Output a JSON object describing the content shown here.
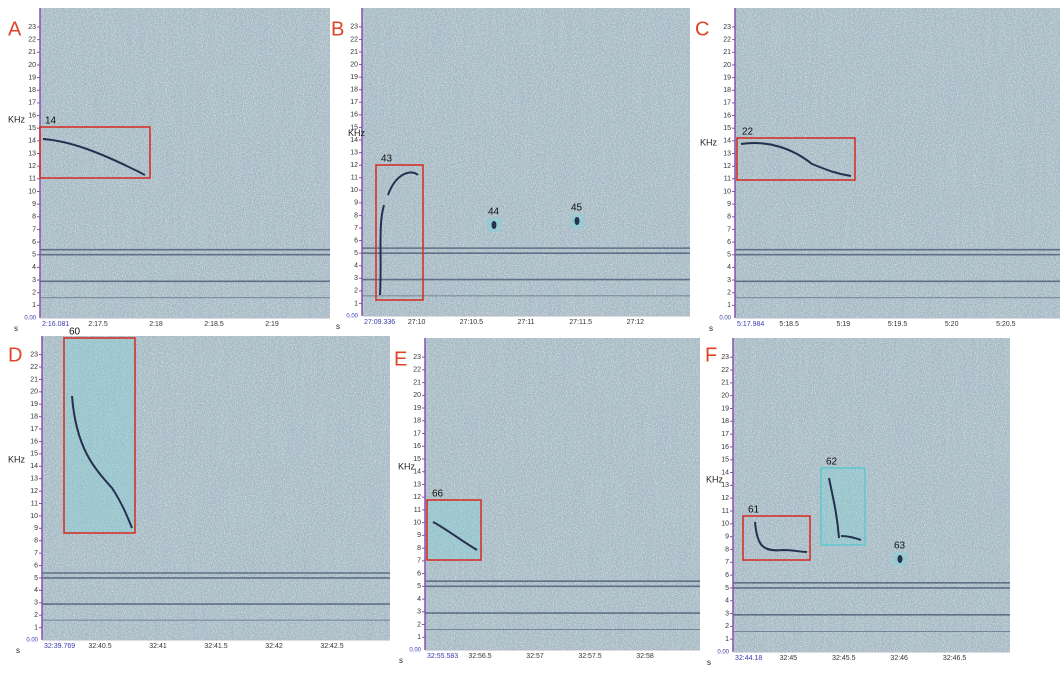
{
  "panels": [
    {
      "letter": "A",
      "y_label": "KHz",
      "y_ticks": [
        "1",
        "2",
        "3",
        "4",
        "5",
        "6",
        "7",
        "8",
        "9",
        "10",
        "11",
        "12",
        "13",
        "14",
        "15",
        "16",
        "17",
        "18",
        "19",
        "20",
        "21",
        "22",
        "23"
      ],
      "origin": "0.00",
      "x_unit": "s",
      "start_time": "2:16.081",
      "x_ticks": [
        "2:17.5",
        "2:18",
        "2:18.5",
        "2:19"
      ],
      "boxes": [
        "14"
      ],
      "spots": []
    },
    {
      "letter": "B",
      "y_label": "KHz",
      "y_ticks": [
        "1",
        "2",
        "3",
        "4",
        "5",
        "6",
        "7",
        "8",
        "9",
        "10",
        "11",
        "12",
        "13",
        "14",
        "15",
        "16",
        "17",
        "18",
        "19",
        "20",
        "21",
        "22",
        "23"
      ],
      "origin": "0.00",
      "x_unit": "s",
      "start_time": "27:09.336",
      "x_ticks": [
        "27:10",
        "27:10.5",
        "27:11",
        "27:11.5",
        "27:12"
      ],
      "boxes": [
        "43"
      ],
      "spots": [
        "44",
        "45"
      ]
    },
    {
      "letter": "C",
      "y_label": "KHz",
      "y_ticks": [
        "1",
        "2",
        "3",
        "4",
        "5",
        "6",
        "7",
        "8",
        "9",
        "10",
        "11",
        "12",
        "13",
        "14",
        "15",
        "16",
        "17",
        "18",
        "19",
        "20",
        "21",
        "22",
        "23"
      ],
      "origin": "0.00",
      "x_unit": "s",
      "start_time": "5:17.984",
      "x_ticks": [
        "5:18.5",
        "5:19",
        "5:19.5",
        "5:20",
        "5:20.5"
      ],
      "boxes": [
        "22"
      ],
      "spots": []
    },
    {
      "letter": "D",
      "y_label": "KHz",
      "y_ticks": [
        "1",
        "2",
        "3",
        "4",
        "5",
        "6",
        "7",
        "8",
        "9",
        "10",
        "11",
        "12",
        "13",
        "14",
        "15",
        "16",
        "17",
        "18",
        "19",
        "20",
        "21",
        "22",
        "23"
      ],
      "origin": "0.00",
      "x_unit": "s",
      "start_time": "32:39.769",
      "x_ticks": [
        "32:40.5",
        "32:41",
        "32:41.5",
        "32:42",
        "32:42.5"
      ],
      "boxes": [
        "60"
      ],
      "spots": []
    },
    {
      "letter": "E",
      "y_label": "KHz",
      "y_ticks": [
        "1",
        "2",
        "3",
        "4",
        "5",
        "6",
        "7",
        "8",
        "9",
        "10",
        "11",
        "12",
        "13",
        "14",
        "15",
        "16",
        "17",
        "18",
        "19",
        "20",
        "21",
        "22",
        "23"
      ],
      "origin": "0.00",
      "x_unit": "s",
      "start_time": "32:55.583",
      "x_ticks": [
        "32:56.5",
        "32:57",
        "32:57.5",
        "32:58"
      ],
      "boxes": [
        "66"
      ],
      "spots": []
    },
    {
      "letter": "F",
      "y_label": "KHz",
      "y_ticks": [
        "1",
        "2",
        "3",
        "4",
        "5",
        "6",
        "7",
        "8",
        "9",
        "10",
        "11",
        "12",
        "13",
        "14",
        "15",
        "16",
        "17",
        "18",
        "19",
        "20",
        "21",
        "22",
        "23"
      ],
      "origin": "0.00",
      "x_unit": "s",
      "start_time": "32:44.18",
      "x_ticks": [
        "32:45",
        "32:45.5",
        "32:46",
        "32:46.5"
      ],
      "boxes": [
        "61",
        "62"
      ],
      "spots": [
        "63"
      ]
    }
  ]
}
